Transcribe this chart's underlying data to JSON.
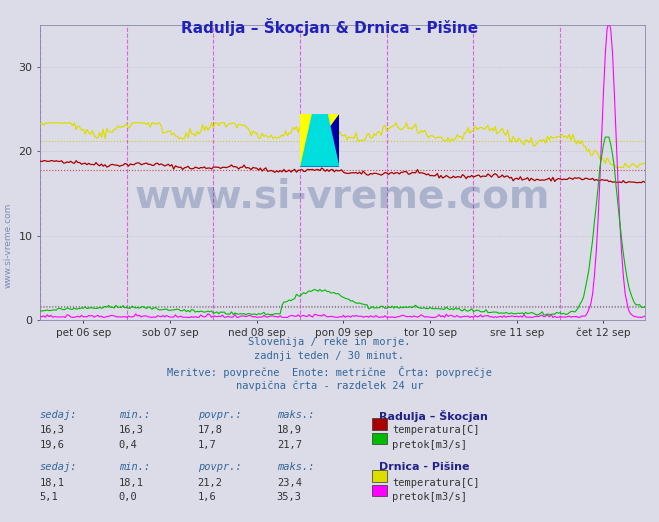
{
  "title": "Radulja – Škocjan & Drnica - Pišine",
  "title_color": "#2222bb",
  "bg_color": "#dcdce8",
  "plot_bg_color": "#dcdce8",
  "ylim": [
    0,
    35
  ],
  "yticks": [
    0,
    10,
    20,
    30
  ],
  "n_points": 336,
  "x_days": [
    "pet 06 sep",
    "sob 07 sep",
    "ned 08 sep",
    "pon 09 sep",
    "tor 10 sep",
    "sre 11 sep",
    "čet 12 sep"
  ],
  "radulja_temp_avg": 17.8,
  "radulja_temp_min": 16.3,
  "radulja_temp_max": 18.9,
  "radulja_temp_cur": 16.3,
  "radulja_flow_avg": 1.7,
  "radulja_flow_min": 0.4,
  "radulja_flow_max": 21.7,
  "radulja_flow_cur": 19.6,
  "drnica_temp_avg": 21.2,
  "drnica_temp_min": 18.1,
  "drnica_temp_max": 23.4,
  "drnica_temp_cur": 18.1,
  "drnica_flow_avg": 1.6,
  "drnica_flow_min": 0.0,
  "drnica_flow_max": 35.3,
  "drnica_flow_cur": 5.1,
  "color_radulja_temp": "#aa0000",
  "color_radulja_flow": "#00bb00",
  "color_drnica_temp": "#dddd00",
  "color_drnica_flow": "#ff00ff",
  "color_avg_radulja_temp": "#cc3333",
  "color_avg_drnica_temp": "#cccc00",
  "color_avg_radulja_flow": "#33aa33",
  "color_avg_drnica_flow": "#ee44ee",
  "color_vline": "#dd44dd",
  "color_grid": "#bbbbcc",
  "legend_header1": "Radulja – Škocjan",
  "legend_header2": "Drnica - Pišine",
  "watermark": "www.si-vreme.com",
  "watermark_color": "#1a3a7a",
  "sivre_color": "#336699",
  "info_color": "#336699"
}
